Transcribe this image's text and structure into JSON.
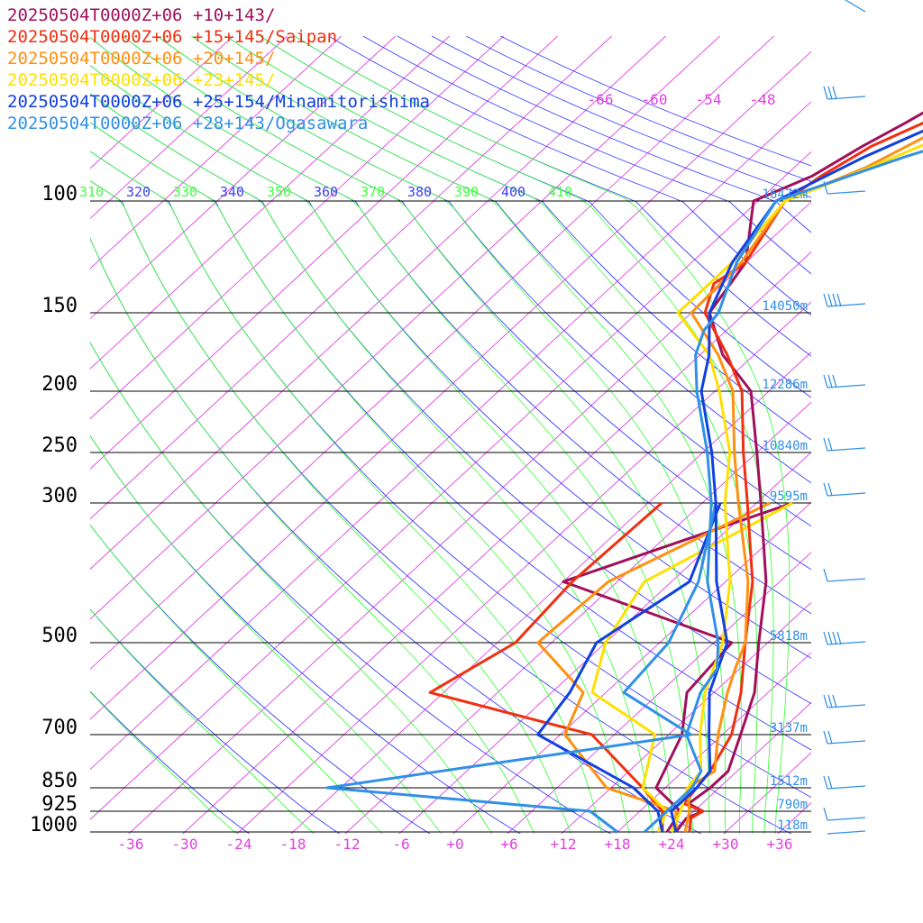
{
  "chart_data": {
    "type": "line",
    "legend": [
      {
        "text": "20250504T0000Z+06 +10+143/",
        "color": "#a0105a"
      },
      {
        "text": "20250504T0000Z+06 +15+145/Saipan",
        "color": "#f03010"
      },
      {
        "text": "20250504T0000Z+06 +20+145/",
        "color": "#ff9010"
      },
      {
        "text": "20250504T0000Z+06 +23+145/",
        "color": "#ffe000"
      },
      {
        "text": "20250504T0000Z+06 +25+154/Minamitorishima",
        "color": "#1040e0"
      },
      {
        "text": "20250504T0000Z+06 +28+143/Ogasawara",
        "color": "#3090e8"
      }
    ],
    "pressure_levels": [
      {
        "p": 100,
        "label": "100",
        "height": "16472m"
      },
      {
        "p": 150,
        "label": "150",
        "height": "14050m"
      },
      {
        "p": 200,
        "label": "200",
        "height": "12286m"
      },
      {
        "p": 250,
        "label": "250",
        "height": "10840m"
      },
      {
        "p": 300,
        "label": "300",
        "height": "9595m"
      },
      {
        "p": 500,
        "label": "500",
        "height": "5818m"
      },
      {
        "p": 700,
        "label": "700",
        "height": "3137m"
      },
      {
        "p": 850,
        "label": "850",
        "height": "1512m"
      },
      {
        "p": 925,
        "label": "925",
        "height": "790m"
      },
      {
        "p": 1000,
        "label": "1000",
        "height": "118m"
      }
    ],
    "x_ticks": [
      "-36",
      "-30",
      "-24",
      "-18",
      "-12",
      "-6",
      "+0",
      "+6",
      "+12",
      "+18",
      "+24",
      "+30",
      "+36"
    ],
    "isotherm_labels": [
      "-66",
      "-60",
      "-54",
      "-48"
    ],
    "theta_labels": [
      "310",
      "320",
      "330",
      "340",
      "350",
      "360",
      "370",
      "380",
      "390",
      "400",
      "410"
    ],
    "xlim": [
      -40,
      40
    ],
    "ylim_hpa": [
      1000,
      100
    ],
    "colors": {
      "isotherm": "#e040e0",
      "theta_dry": "#4040ff",
      "theta_moist": "#40ff40",
      "isobar": "#000000",
      "height_text": "#3090e8",
      "wind_barb": "#3090e8",
      "tick_text": "#e040e0"
    },
    "series": [
      {
        "name": "20250504T0000Z+06 +10+143/",
        "color": "#a0105a",
        "temperature": [
          [
            1000,
            24.5
          ],
          [
            950,
            24.0
          ],
          [
            925,
            25.0
          ],
          [
            900,
            22.5
          ],
          [
            850,
            23.0
          ],
          [
            800,
            23.0
          ],
          [
            700,
            20.0
          ],
          [
            600,
            16.5
          ],
          [
            500,
            11.0
          ],
          [
            400,
            4.5
          ],
          [
            300,
            -5.5
          ],
          [
            250,
            -12.0
          ],
          [
            200,
            -20.0
          ],
          [
            175,
            -27.5
          ],
          [
            150,
            -34.0
          ],
          [
            125,
            -36.0
          ],
          [
            100,
            -42.5
          ],
          [
            85,
            -39.0
          ],
          [
            70,
            -37.0
          ],
          [
            60,
            -35.0
          ],
          [
            55,
            -34.0
          ],
          [
            50,
            -31.0
          ]
        ],
        "dewpoint": [
          [
            1000,
            23.5
          ],
          [
            925,
            22.5
          ],
          [
            850,
            17.0
          ],
          [
            700,
            13.5
          ],
          [
            600,
            9.0
          ],
          [
            500,
            8.0
          ],
          [
            400,
            -18.0
          ],
          [
            300,
            -2.0
          ]
        ]
      },
      {
        "name": "20250504T0000Z+06 +15+145/Saipan",
        "color": "#f03010",
        "temperature": [
          [
            1000,
            26.0
          ],
          [
            950,
            24.5
          ],
          [
            925,
            25.0
          ],
          [
            900,
            22.0
          ],
          [
            850,
            21.5
          ],
          [
            800,
            21.0
          ],
          [
            700,
            19.0
          ],
          [
            600,
            15.0
          ],
          [
            500,
            9.5
          ],
          [
            400,
            3.0
          ],
          [
            300,
            -7.0
          ],
          [
            250,
            -13.5
          ],
          [
            200,
            -21.0
          ],
          [
            175,
            -27.0
          ],
          [
            150,
            -34.5
          ],
          [
            135,
            -37.0
          ],
          [
            125,
            -36.0
          ],
          [
            100,
            -39.0
          ],
          [
            85,
            -38.0
          ],
          [
            70,
            -36.0
          ],
          [
            60,
            -33.0
          ],
          [
            55,
            -31.0
          ],
          [
            50,
            -29.0
          ]
        ],
        "dewpoint": [
          [
            1000,
            23.0
          ],
          [
            925,
            20.5
          ],
          [
            850,
            15.5
          ],
          [
            700,
            3.5
          ],
          [
            600,
            -19.5
          ],
          [
            500,
            -16.0
          ],
          [
            400,
            -17.0
          ],
          [
            300,
            -16.5
          ]
        ]
      },
      {
        "name": "20250504T0000Z+06 +20+145/",
        "color": "#ff9010",
        "temperature": [
          [
            1000,
            25.5
          ],
          [
            925,
            23.5
          ],
          [
            850,
            20.5
          ],
          [
            800,
            21.5
          ],
          [
            700,
            17.5
          ],
          [
            600,
            13.5
          ],
          [
            550,
            11.5
          ],
          [
            500,
            9.5
          ],
          [
            400,
            2.5
          ],
          [
            300,
            -8.0
          ],
          [
            250,
            -14.5
          ],
          [
            200,
            -22.0
          ],
          [
            175,
            -28.0
          ],
          [
            150,
            -36.0
          ],
          [
            125,
            -36.5
          ],
          [
            100,
            -39.0
          ],
          [
            80,
            -34.0
          ],
          [
            65,
            -31.0
          ],
          [
            55,
            -30.0
          ],
          [
            50,
            -28.5
          ]
        ],
        "dewpoint": [
          [
            1000,
            24.5
          ],
          [
            925,
            22.0
          ],
          [
            850,
            11.5
          ],
          [
            700,
            0.5
          ],
          [
            600,
            -2.5
          ],
          [
            500,
            -13.5
          ],
          [
            400,
            -13.0
          ],
          [
            300,
            -4.5
          ]
        ]
      },
      {
        "name": "20250504T0000Z+06 +23+145/",
        "color": "#ffe000",
        "temperature": [
          [
            1000,
            24.0
          ],
          [
            925,
            22.5
          ],
          [
            850,
            20.5
          ],
          [
            800,
            20.0
          ],
          [
            700,
            15.5
          ],
          [
            600,
            11.0
          ],
          [
            500,
            7.0
          ],
          [
            400,
            0.5
          ],
          [
            300,
            -9.5
          ],
          [
            250,
            -15.0
          ],
          [
            200,
            -23.5
          ],
          [
            175,
            -29.0
          ],
          [
            150,
            -37.5
          ],
          [
            125,
            -37.5
          ],
          [
            100,
            -39.0
          ],
          [
            80,
            -33.5
          ],
          [
            65,
            -29.0
          ],
          [
            55,
            -27.5
          ],
          [
            50,
            -26.0
          ]
        ],
        "dewpoint": [
          [
            1000,
            22.5
          ],
          [
            925,
            21.0
          ],
          [
            850,
            15.5
          ],
          [
            700,
            10.5
          ],
          [
            600,
            -1.5
          ],
          [
            500,
            -6.0
          ],
          [
            400,
            -9.0
          ],
          [
            300,
            -2.0
          ]
        ]
      },
      {
        "name": "20250504T0000Z+06 +25+154/Minamitorishima",
        "color": "#1040e0",
        "temperature": [
          [
            1000,
            24.5
          ],
          [
            925,
            21.5
          ],
          [
            850,
            21.5
          ],
          [
            800,
            21.0
          ],
          [
            700,
            16.5
          ],
          [
            600,
            11.5
          ],
          [
            500,
            7.5
          ],
          [
            400,
            -1.0
          ],
          [
            300,
            -10.5
          ],
          [
            250,
            -17.0
          ],
          [
            200,
            -25.5
          ],
          [
            175,
            -29.0
          ],
          [
            150,
            -34.0
          ],
          [
            125,
            -37.5
          ],
          [
            100,
            -40.0
          ],
          [
            75,
            -35.5
          ],
          [
            60,
            -31.0
          ],
          [
            50,
            -28.0
          ]
        ],
        "dewpoint": [
          [
            1000,
            23.0
          ],
          [
            925,
            20.0
          ],
          [
            850,
            14.5
          ],
          [
            700,
            -2.5
          ],
          [
            600,
            -4.0
          ],
          [
            500,
            -7.0
          ],
          [
            400,
            -4.0
          ],
          [
            300,
            -10.0
          ]
        ]
      },
      {
        "name": "20250504T0000Z+06 +28+143/Ogasawara",
        "color": "#3090e8",
        "temperature": [
          [
            1000,
            21.0
          ],
          [
            925,
            21.0
          ],
          [
            850,
            21.0
          ],
          [
            800,
            20.0
          ],
          [
            700,
            14.0
          ],
          [
            600,
            10.5
          ],
          [
            550,
            9.5
          ],
          [
            500,
            6.5
          ],
          [
            400,
            -2.0
          ],
          [
            300,
            -11.0
          ],
          [
            250,
            -17.5
          ],
          [
            200,
            -26.0
          ],
          [
            175,
            -30.5
          ],
          [
            160,
            -32.5
          ],
          [
            150,
            -33.0
          ],
          [
            125,
            -37.0
          ],
          [
            100,
            -40.0
          ],
          [
            75,
            -31.0
          ],
          [
            60,
            -23.0
          ],
          [
            50,
            -20.5
          ]
        ],
        "dewpoint": [
          [
            1000,
            18.0
          ],
          [
            925,
            12.5
          ],
          [
            850,
            -19.5
          ],
          [
            700,
            14.5
          ],
          [
            600,
            2.0
          ],
          [
            500,
            1.0
          ],
          [
            400,
            -3.0
          ],
          [
            300,
            -10.5
          ]
        ]
      }
    ]
  }
}
